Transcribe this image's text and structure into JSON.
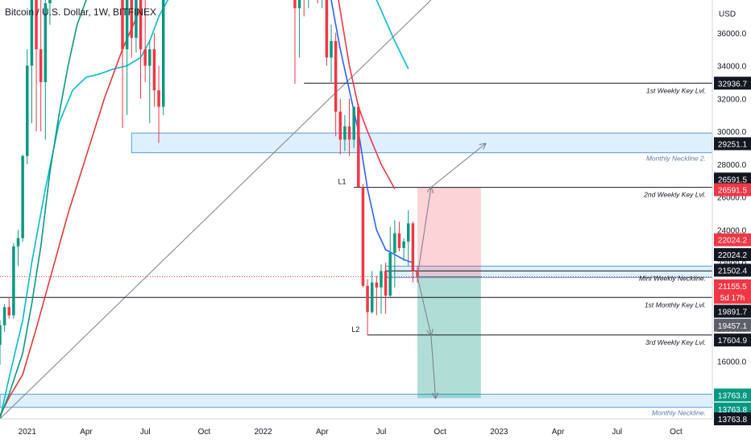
{
  "header": {
    "title": "Bitcoin / U.S. Dollar, 1W, BITFINEX"
  },
  "chart_data": {
    "type": "candlestick",
    "title": "Bitcoin / U.S. Dollar, 1W, BITFINEX",
    "y_unit": "USD",
    "ylim": [
      12500,
      38000
    ],
    "y_ticks": [
      16000,
      18000,
      20000,
      22000,
      24000,
      26000,
      28000,
      30000,
      32000,
      34000,
      36000
    ],
    "y_tick_labels": [
      "16000.0",
      "18000.0",
      "20000.0",
      "22000.0",
      "24000.0",
      "26000.0",
      "28000.0",
      "30000.0",
      "32000.0",
      "34000.0",
      "36000.0"
    ],
    "x_labels": [
      {
        "label": "2021",
        "week": 1
      },
      {
        "label": "Apr",
        "week": 14
      },
      {
        "label": "Jul",
        "week": 27
      },
      {
        "label": "Oct",
        "week": 40
      },
      {
        "label": "2022",
        "week": 53
      },
      {
        "label": "Apr",
        "week": 66
      },
      {
        "label": "Jul",
        "week": 79
      },
      {
        "label": "Oct",
        "week": 92
      },
      {
        "label": "2023",
        "week": 105
      },
      {
        "label": "Apr",
        "week": 118
      },
      {
        "label": "Jul",
        "week": 131
      },
      {
        "label": "Oct",
        "week": 144
      }
    ],
    "week_range": [
      -5,
      152
    ],
    "candles": [
      {
        "w": -5,
        "o": 17000,
        "h": 18500,
        "l": 15800,
        "c": 18200
      },
      {
        "w": -4,
        "o": 18200,
        "h": 19500,
        "l": 17800,
        "c": 19300
      },
      {
        "w": -3,
        "o": 19300,
        "h": 19900,
        "l": 18600,
        "c": 18800
      },
      {
        "w": -2,
        "o": 18800,
        "h": 23200,
        "l": 18600,
        "c": 23000
      },
      {
        "w": -1,
        "o": 23000,
        "h": 24000,
        "l": 21800,
        "c": 23500
      },
      {
        "w": 0,
        "o": 23500,
        "h": 28600,
        "l": 23300,
        "c": 28500
      },
      {
        "w": 1,
        "o": 28500,
        "h": 35000,
        "l": 28000,
        "c": 34000
      },
      {
        "w": 2,
        "o": 34000,
        "h": 42000,
        "l": 30500,
        "c": 38500
      },
      {
        "w": 3,
        "o": 38500,
        "h": 40000,
        "l": 30000,
        "c": 35000
      },
      {
        "w": 4,
        "o": 35000,
        "h": 38500,
        "l": 30000,
        "c": 33000
      },
      {
        "w": 5,
        "o": 33000,
        "h": 38000,
        "l": 29500,
        "c": 37800
      },
      {
        "w": 6,
        "o": 37800,
        "h": 40000,
        "l": 36500,
        "c": 39500
      },
      {
        "w": 22,
        "o": 39500,
        "h": 40500,
        "l": 30200,
        "c": 35000
      },
      {
        "w": 23,
        "o": 35000,
        "h": 41000,
        "l": 31000,
        "c": 39000
      },
      {
        "w": 24,
        "o": 39000,
        "h": 40000,
        "l": 34500,
        "c": 35700
      },
      {
        "w": 25,
        "o": 35700,
        "h": 40000,
        "l": 34800,
        "c": 38500
      },
      {
        "w": 26,
        "o": 38500,
        "h": 41000,
        "l": 32000,
        "c": 35000
      },
      {
        "w": 27,
        "o": 35000,
        "h": 38000,
        "l": 33000,
        "c": 34000
      },
      {
        "w": 28,
        "o": 34000,
        "h": 35500,
        "l": 30500,
        "c": 35000
      },
      {
        "w": 29,
        "o": 35000,
        "h": 36000,
        "l": 31500,
        "c": 32500
      },
      {
        "w": 30,
        "o": 32500,
        "h": 34000,
        "l": 29300,
        "c": 31500
      },
      {
        "w": 31,
        "o": 31500,
        "h": 40000,
        "l": 31000,
        "c": 39800
      },
      {
        "w": 32,
        "o": 39800,
        "h": 42500,
        "l": 38000,
        "c": 41500
      },
      {
        "w": 60,
        "o": 38500,
        "h": 40500,
        "l": 32900,
        "c": 37500
      },
      {
        "w": 61,
        "o": 37500,
        "h": 40000,
        "l": 34500,
        "c": 39000
      },
      {
        "w": 62,
        "o": 39000,
        "h": 41000,
        "l": 37000,
        "c": 38500
      },
      {
        "w": 63,
        "o": 38500,
        "h": 42500,
        "l": 37500,
        "c": 40500
      },
      {
        "w": 64,
        "o": 40500,
        "h": 42000,
        "l": 38000,
        "c": 39500
      },
      {
        "w": 65,
        "o": 39500,
        "h": 40500,
        "l": 37800,
        "c": 38500
      },
      {
        "w": 66,
        "o": 38500,
        "h": 42000,
        "l": 37500,
        "c": 40000
      },
      {
        "w": 67,
        "o": 40000,
        "h": 41000,
        "l": 34000,
        "c": 34500
      },
      {
        "w": 68,
        "o": 34500,
        "h": 36500,
        "l": 33000,
        "c": 35500
      },
      {
        "w": 69,
        "o": 35500,
        "h": 36000,
        "l": 29700,
        "c": 31200
      },
      {
        "w": 70,
        "o": 31200,
        "h": 32000,
        "l": 28600,
        "c": 29500
      },
      {
        "w": 71,
        "o": 29500,
        "h": 31000,
        "l": 28800,
        "c": 30300
      },
      {
        "w": 72,
        "o": 30300,
        "h": 32000,
        "l": 28500,
        "c": 29500
      },
      {
        "w": 73,
        "o": 29500,
        "h": 31500,
        "l": 29000,
        "c": 31500
      },
      {
        "w": 74,
        "o": 31500,
        "h": 31700,
        "l": 26600,
        "c": 26600
      },
      {
        "w": 75,
        "o": 26600,
        "h": 26800,
        "l": 20500,
        "c": 20600
      },
      {
        "w": 76,
        "o": 20600,
        "h": 21000,
        "l": 17600,
        "c": 19000
      },
      {
        "w": 77,
        "o": 19000,
        "h": 21500,
        "l": 18900,
        "c": 20800
      },
      {
        "w": 78,
        "o": 20800,
        "h": 21200,
        "l": 18800,
        "c": 20500
      },
      {
        "w": 79,
        "o": 20500,
        "h": 21900,
        "l": 18900,
        "c": 21500
      },
      {
        "w": 80,
        "o": 21500,
        "h": 22000,
        "l": 18900,
        "c": 20000
      },
      {
        "w": 81,
        "o": 20000,
        "h": 24200,
        "l": 19900,
        "c": 22600
      },
      {
        "w": 82,
        "o": 22600,
        "h": 24600,
        "l": 20500,
        "c": 23800
      },
      {
        "w": 83,
        "o": 23800,
        "h": 24500,
        "l": 22700,
        "c": 22900
      },
      {
        "w": 84,
        "o": 22900,
        "h": 23500,
        "l": 22100,
        "c": 23300
      },
      {
        "w": 85,
        "o": 23300,
        "h": 25200,
        "l": 21800,
        "c": 24400
      },
      {
        "w": 86,
        "o": 24400,
        "h": 24500,
        "l": 20800,
        "c": 21500
      },
      {
        "w": 87,
        "o": 21500,
        "h": 21800,
        "l": 20800,
        "c": 21155
      }
    ],
    "moving_averages": [
      {
        "name": "",
        "color": "#2962ff",
        "points": [
          [
            50,
            47000
          ],
          [
            60,
            42000
          ],
          [
            66,
            40000
          ],
          [
            68,
            38000
          ],
          [
            70,
            35000
          ],
          [
            72,
            32500
          ],
          [
            74,
            30000
          ],
          [
            76,
            26500
          ],
          [
            78,
            24000
          ],
          [
            80,
            22800
          ],
          [
            82,
            22500
          ],
          [
            84,
            22200
          ],
          [
            86,
            22000
          ]
        ]
      },
      {
        "name": "",
        "color": "#f23645",
        "points": [
          [
            62,
            48000
          ],
          [
            66,
            44000
          ],
          [
            69,
            39000
          ],
          [
            72,
            34000
          ],
          [
            74,
            31500
          ],
          [
            76,
            30000
          ],
          [
            79,
            28000
          ],
          [
            82,
            26500
          ]
        ]
      },
      {
        "name": "",
        "color": "#00bcd4",
        "points": [
          [
            -5,
            12500
          ],
          [
            -3,
            15000
          ],
          [
            0,
            18500
          ],
          [
            2,
            22000
          ],
          [
            5,
            26500
          ],
          [
            8,
            30500
          ],
          [
            11,
            32500
          ],
          [
            14,
            33300
          ],
          [
            17,
            33500
          ],
          [
            20,
            33800
          ],
          [
            23,
            34000
          ],
          [
            26,
            34500
          ],
          [
            28,
            35500
          ],
          [
            30,
            37000
          ],
          [
            33,
            38500
          ],
          [
            36,
            39500
          ],
          [
            40,
            40500
          ],
          [
            68,
            44000
          ],
          [
            74,
            41000
          ],
          [
            78,
            38000
          ],
          [
            82,
            35500
          ],
          [
            85,
            33800
          ]
        ]
      },
      {
        "name": "",
        "color": "#e53935",
        "points": [
          [
            -5,
            12700
          ],
          [
            -3,
            13800
          ],
          [
            0,
            15200
          ],
          [
            3,
            18000
          ],
          [
            6,
            21000
          ],
          [
            10,
            25000
          ],
          [
            14,
            28500
          ],
          [
            18,
            32000
          ],
          [
            22,
            35000
          ],
          [
            26,
            37500
          ]
        ]
      },
      {
        "name": "",
        "color": "#089981",
        "points": [
          [
            -5,
            12600
          ],
          [
            -3,
            14000
          ],
          [
            0,
            16500
          ],
          [
            2,
            19500
          ],
          [
            4,
            23000
          ],
          [
            6,
            27500
          ],
          [
            8,
            31000
          ],
          [
            10,
            34000
          ],
          [
            12,
            36500
          ],
          [
            14,
            38000
          ]
        ]
      }
    ],
    "trendline": {
      "from": [
        -5,
        12500
      ],
      "to": [
        90,
        38000
      ]
    },
    "key_levels": [
      {
        "price": 32936.7,
        "from_week": 62,
        "label": "1st Weekly Key Lvl."
      },
      {
        "price": 26591.5,
        "from_week": 73,
        "label": "2nd Weekly Key Lvl."
      },
      {
        "price": 21502.4,
        "from_week": 80,
        "label": "Mini Weekly Neckline."
      },
      {
        "price": 19891.7,
        "from_week": -5,
        "label": "1st Monthly Key Lvl."
      },
      {
        "price": 17604.9,
        "from_week": 76,
        "label": "3rd Weekly Key Lvl."
      }
    ],
    "zones": [
      {
        "top": 29900,
        "bottom": 28700,
        "from_week": 24,
        "label": "Monthly Neckline 2."
      },
      {
        "top": 14000,
        "bottom": 13200,
        "from_week": -5,
        "label": "Monthly Neckline."
      },
      {
        "top": 21800,
        "bottom": 21100,
        "from_week": 80,
        "label": ""
      }
    ],
    "position": {
      "from_week": 87,
      "to_week": 101,
      "entry": 21155.5,
      "stop": 26591.5,
      "target": 13763.8
    },
    "rays": [
      {
        "from": [
          87,
          21155
        ],
        "to": [
          90,
          26591
        ]
      },
      {
        "from": [
          90,
          26591
        ],
        "to": [
          102,
          29251
        ]
      },
      {
        "from": [
          87,
          21155
        ],
        "to": [
          90,
          17604
        ]
      },
      {
        "from": [
          90,
          17604
        ],
        "to": [
          91,
          13763
        ]
      }
    ],
    "point_labels": [
      {
        "text": "L1",
        "week": 72,
        "price": 26700
      },
      {
        "text": "L2",
        "week": 75,
        "price": 17700
      }
    ],
    "current_price": 21155.5,
    "price_tags": [
      {
        "text": "USD",
        "price": 37200,
        "style": "plain"
      },
      {
        "text": "32936.7",
        "price": 32936.7,
        "style": "black"
      },
      {
        "text": "29251.1",
        "price": 29251.1,
        "style": "black"
      },
      {
        "text": "26591.5",
        "price": 27100,
        "style": "black"
      },
      {
        "text": "26591.5",
        "price": 26450,
        "style": "red"
      },
      {
        "text": "22024.2",
        "price": 23400,
        "style": "red"
      },
      {
        "text": "22024.2",
        "price": 22500,
        "style": "black"
      },
      {
        "text": "21502.4",
        "price": 21550,
        "style": "black"
      },
      {
        "text": "21155.5",
        "price": 20600,
        "style": "red"
      },
      {
        "text": "5d 17h",
        "price": 19900,
        "style": "red"
      },
      {
        "text": "19891.7",
        "price": 19050,
        "style": "black"
      },
      {
        "text": "19457.1",
        "price": 18200,
        "style": "gray"
      },
      {
        "text": "17604.9",
        "price": 17300,
        "style": "black"
      },
      {
        "text": "13763.8",
        "price": 13950,
        "style": "green"
      },
      {
        "text": "13763.8",
        "price": 13100,
        "style": "green"
      },
      {
        "text": "13763.8",
        "price": 12500,
        "style": "black"
      }
    ]
  }
}
